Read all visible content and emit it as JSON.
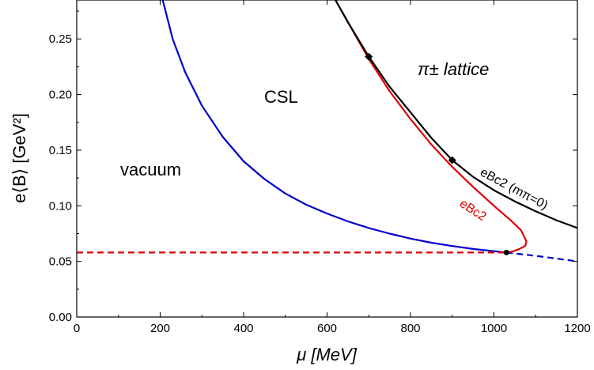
{
  "chart_data": {
    "type": "line",
    "xlabel": "μ [MeV]",
    "ylabel": "e⟨B⟩ [GeV²]",
    "xlim": [
      0,
      1200
    ],
    "ylim": [
      0,
      0.285
    ],
    "x_ticks": [
      0,
      200,
      400,
      600,
      800,
      1000,
      1200
    ],
    "y_ticks": [
      0.0,
      0.05,
      0.1,
      0.15,
      0.2,
      0.25
    ],
    "x_tick_labels": [
      "0",
      "200",
      "400",
      "600",
      "800",
      "1000",
      "1200"
    ],
    "y_tick_labels": [
      "0.00",
      "0.05",
      "0.10",
      "0.15",
      "0.20",
      "0.25"
    ],
    "grid": false,
    "colors": {
      "blue": "#0000cc",
      "red": "#dd0000",
      "black": "#000000"
    },
    "series": [
      {
        "color": "blue",
        "style": "solid",
        "x": [
          206,
          230,
          260,
          300,
          350,
          400,
          450,
          500,
          550,
          600,
          650,
          700,
          750,
          800,
          850,
          900,
          950,
          1000,
          1030
        ],
        "y": [
          0.285,
          0.25,
          0.22,
          0.19,
          0.162,
          0.14,
          0.124,
          0.111,
          0.101,
          0.093,
          0.086,
          0.08,
          0.075,
          0.0705,
          0.0668,
          0.0638,
          0.0612,
          0.0592,
          0.058
        ]
      },
      {
        "color": "blue",
        "style": "dashed",
        "x": [
          1030,
          1100,
          1200
        ],
        "y": [
          0.058,
          0.055,
          0.05
        ]
      },
      {
        "color": "red",
        "style": "dashed",
        "x": [
          0,
          1030
        ],
        "y": [
          0.058,
          0.058
        ]
      },
      {
        "color": "red",
        "style": "solid",
        "x": [
          620,
          650,
          700,
          750,
          800,
          850,
          900,
          950,
          1000,
          1040,
          1065,
          1078,
          1075,
          1060,
          1045,
          1030
        ],
        "y": [
          0.285,
          0.265,
          0.232,
          0.203,
          0.178,
          0.155,
          0.135,
          0.117,
          0.1,
          0.087,
          0.078,
          0.068,
          0.064,
          0.061,
          0.059,
          0.058
        ]
      },
      {
        "color": "black",
        "style": "solid",
        "x": [
          620,
          650,
          700,
          750,
          800,
          850,
          900,
          950,
          1000,
          1050,
          1100,
          1150,
          1200
        ],
        "y": [
          0.285,
          0.265,
          0.234,
          0.207,
          0.184,
          0.161,
          0.141,
          0.126,
          0.114,
          0.104,
          0.095,
          0.087,
          0.08
        ]
      }
    ],
    "markers": [
      {
        "shape": "diamond",
        "x": 700,
        "y": 0.234
      },
      {
        "shape": "diamond",
        "x": 900,
        "y": 0.141
      },
      {
        "shape": "circle",
        "x": 1030,
        "y": 0.058
      }
    ],
    "annotations": {
      "vacuum": "vacuum",
      "csl": "CSL",
      "pi_lattice": "π± lattice",
      "ebc2_red": "eBc2",
      "ebc2_black": "eBc2 (mπ=0)"
    }
  }
}
